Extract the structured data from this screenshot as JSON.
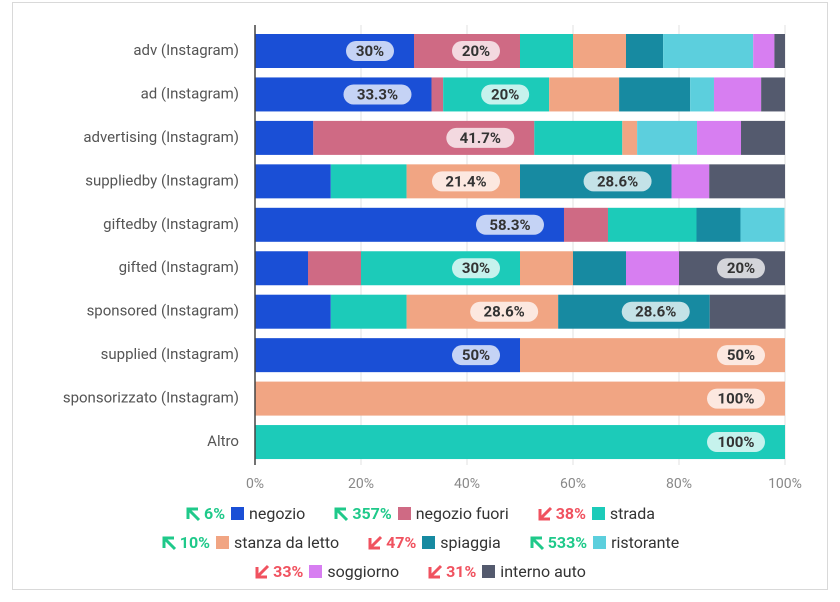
{
  "chart_data": {
    "type": "stacked_bar_horizontal",
    "categories": [
      "adv (Instagram)",
      "ad (Instagram)",
      "advertising (Instagram)",
      "suppliedby (Instagram)",
      "giftedby (Instagram)",
      "gifted (Instagram)",
      "sponsored (Instagram)",
      "supplied (Instagram)",
      "sponsorizzato (Instagram)",
      "Altro"
    ],
    "xlim": [
      0,
      100
    ],
    "xticks": [
      {
        "value": 0,
        "label": "0%"
      },
      {
        "value": 20,
        "label": "20%"
      },
      {
        "value": 40,
        "label": "40%"
      },
      {
        "value": 60,
        "label": "60%"
      },
      {
        "value": 80,
        "label": "80%"
      },
      {
        "value": 100,
        "label": "100%"
      }
    ],
    "series": [
      {
        "name": "negozio",
        "color": "#1a4fd6",
        "change": "6%",
        "trend": "up",
        "values": [
          30,
          33.3,
          11,
          14.3,
          58.3,
          10,
          14.3,
          50,
          0,
          0
        ],
        "value_labels": [
          "30%",
          "33.3%",
          null,
          null,
          "58.3%",
          null,
          null,
          "50%",
          null,
          null
        ]
      },
      {
        "name": "negozio fuori",
        "color": "#cf6a84",
        "change": "357%",
        "trend": "up",
        "values": [
          20,
          2.2,
          41.7,
          0,
          8.3,
          10,
          0,
          0,
          0,
          0
        ],
        "value_labels": [
          "20%",
          null,
          "41.7%",
          null,
          null,
          null,
          null,
          null,
          null,
          null
        ]
      },
      {
        "name": "strada",
        "color": "#1ccbb9",
        "change": "38%",
        "trend": "down",
        "values": [
          10,
          20,
          16.6,
          14.3,
          16.7,
          30,
          14.3,
          0,
          0,
          100
        ],
        "value_labels": [
          null,
          "20%",
          null,
          null,
          null,
          "30%",
          null,
          null,
          null,
          "100%"
        ]
      },
      {
        "name": "stanza da letto",
        "color": "#f1a583",
        "change": "10%",
        "trend": "up",
        "values": [
          10,
          13.2,
          2.8,
          21.4,
          0,
          10,
          28.6,
          50,
          100,
          0
        ],
        "value_labels": [
          null,
          null,
          null,
          "21.4%",
          null,
          null,
          "28.6%",
          "50%",
          "100%",
          null
        ]
      },
      {
        "name": "spiaggia",
        "color": "#178aa1",
        "change": "47%",
        "trend": "down",
        "values": [
          7,
          13.4,
          0,
          28.6,
          8.3,
          10,
          28.6,
          0,
          0,
          0
        ],
        "value_labels": [
          null,
          null,
          null,
          "28.6%",
          null,
          null,
          "28.6%",
          null,
          null,
          null
        ]
      },
      {
        "name": "ristorante",
        "color": "#5ccfdd",
        "change": "533%",
        "trend": "up",
        "values": [
          17,
          4.5,
          11.3,
          0,
          8.3,
          0,
          0,
          0,
          0,
          0
        ],
        "value_labels": [
          null,
          null,
          null,
          null,
          null,
          null,
          null,
          null,
          null,
          null
        ]
      },
      {
        "name": "soggiorno",
        "color": "#d77ef1",
        "change": "33%",
        "trend": "down",
        "values": [
          4,
          8.9,
          8.3,
          7.1,
          0,
          10,
          0,
          0,
          0,
          0
        ],
        "value_labels": [
          null,
          null,
          null,
          null,
          null,
          null,
          null,
          null,
          null,
          null
        ]
      },
      {
        "name": "interno auto",
        "color": "#545a6e",
        "change": "31%",
        "trend": "down",
        "values": [
          2,
          4.5,
          8.3,
          14.3,
          0,
          20,
          14.3,
          0,
          0,
          0
        ],
        "value_labels": [
          null,
          null,
          null,
          null,
          null,
          "20%",
          null,
          null,
          null,
          null
        ]
      }
    ]
  }
}
